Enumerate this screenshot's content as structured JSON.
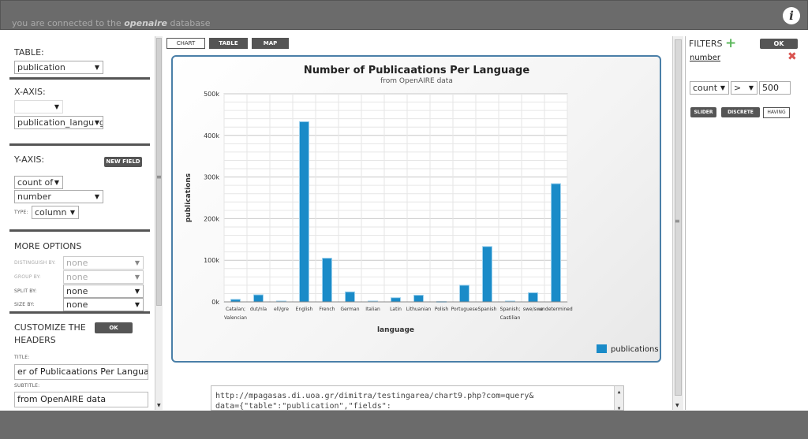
{
  "header": {
    "connection_prefix": "you are connected to the",
    "db_name": "openaire",
    "connection_suffix": "database",
    "info_glyph": "i"
  },
  "left_panel": {
    "table": {
      "label": "TABLE:",
      "value": "publication"
    },
    "x_axis": {
      "label": "X-AXIS:",
      "agg_value": "",
      "field_value": "publication_language"
    },
    "y_axis": {
      "label": "Y-AXIS:",
      "new_field_button": "NEW FIELD",
      "agg_value": "count of",
      "field_value": "number",
      "type_label": "TYPE:",
      "type_value": "column"
    },
    "more_options": {
      "label": "MORE OPTIONS",
      "rows": [
        {
          "label": "DISTINGUISH BY:",
          "value": "none",
          "disabled": true
        },
        {
          "label": "GROUP BY:",
          "value": "none",
          "disabled": true
        },
        {
          "label": "SPLIT BY:",
          "value": "none",
          "disabled": false
        },
        {
          "label": "SIZE BY:",
          "value": "none",
          "disabled": false
        }
      ]
    },
    "customize": {
      "label_line1": "CUSTOMIZE THE",
      "label_line2": "HEADERS",
      "ok_button": "OK",
      "title_label": "TITLE:",
      "title_value": "er of Publicaations Per Language",
      "subtitle_label": "SUBTITLE:",
      "subtitle_value": "from OpenAIRE data"
    }
  },
  "tabs": [
    {
      "label": "CHART",
      "active": true
    },
    {
      "label": "TABLE",
      "active": false
    },
    {
      "label": "MAP",
      "active": false
    }
  ],
  "chart_data": {
    "type": "bar",
    "title": "Number of Publicaations Per Language",
    "subtitle": "from OpenAIRE data",
    "xlabel": "language",
    "ylabel": "publications",
    "ylim": [
      0,
      500000
    ],
    "yticks": [
      "0k",
      "100k",
      "200k",
      "300k",
      "400k",
      "500k"
    ],
    "grid": true,
    "legend_position": "bottom-right",
    "categories": [
      "Catalan; Valencian",
      "dut/nla",
      "ell/gre",
      "English",
      "French",
      "German",
      "Italian",
      "Latin",
      "Lithuanian",
      "Polish",
      "Portuguese",
      "Spanish",
      "Spanish; Castilian",
      "swe/swe",
      "undetermined"
    ],
    "category_lines": [
      [
        "Catalan;",
        "Valencian"
      ],
      [
        "dut/nla"
      ],
      [
        "ell/gre"
      ],
      [
        "English"
      ],
      [
        "French"
      ],
      [
        "German"
      ],
      [
        "Italian"
      ],
      [
        "Latin"
      ],
      [
        "Lithuanian"
      ],
      [
        "Polish"
      ],
      [
        "Portuguese"
      ],
      [
        "Spanish"
      ],
      [
        "Spanish;",
        "Castilian"
      ],
      [
        "swe/swe"
      ],
      [
        "undetermined"
      ]
    ],
    "series": [
      {
        "name": "publications",
        "color": "#1a8bc8",
        "values": [
          6000,
          17000,
          2000,
          433000,
          105000,
          24000,
          2000,
          10000,
          16000,
          1000,
          40000,
          133000,
          2000,
          22000,
          284000
        ]
      }
    ]
  },
  "right_panel": {
    "filters_label": "FILTERS",
    "add_icon": "+",
    "ok_button": "OK",
    "filter_field": "number",
    "remove_icon": "✖",
    "agg_value": "count",
    "op_value": ">",
    "threshold": "500",
    "buttons": {
      "slider": "SLIDER",
      "discrete": "DISCRETE",
      "having": "HAVING"
    }
  },
  "query_url": {
    "line1": "http://mpagasas.di.uoa.gr/dimitra/testingarea/chart9.php?com=query&",
    "line2": "data={\"table\":\"publication\",\"fields\":"
  },
  "colors": {
    "bar": "#1a8bc8",
    "frame": "#4a7fa8",
    "bar_chrome": "#6b6b6b"
  }
}
